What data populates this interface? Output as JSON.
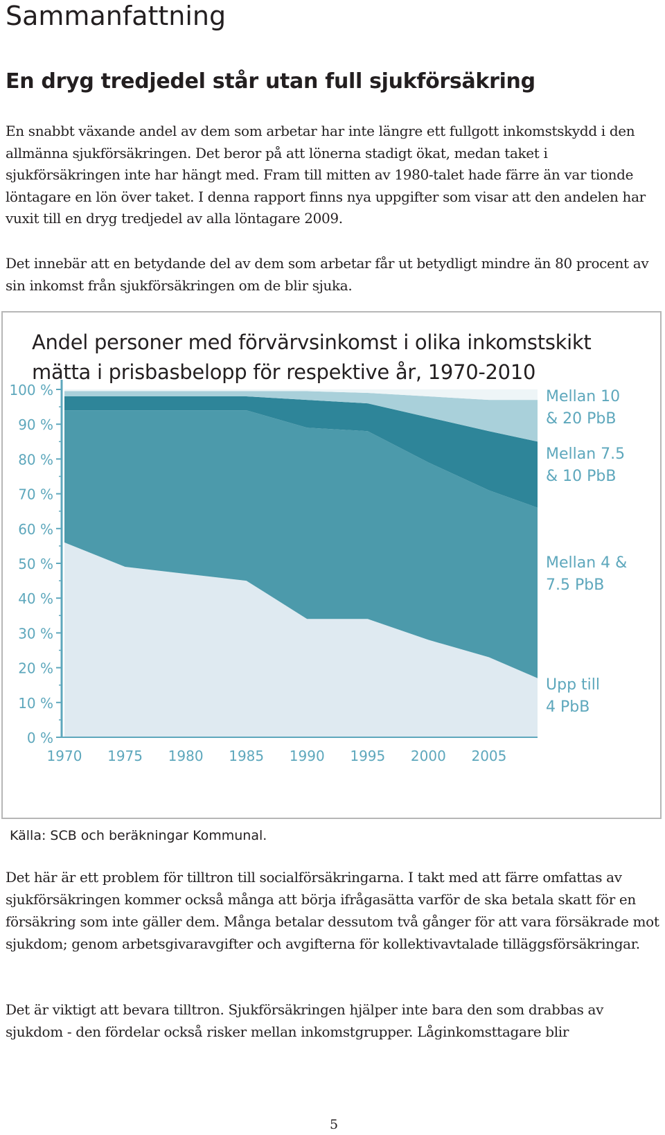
{
  "page": {
    "heading": "Sammanfattning",
    "subheading": "En dryg tredjedel står utan full sjukförsäkring",
    "paragraphs": [
      "En snabbt växande andel av dem som arbetar har inte längre ett fullgott inkomstskydd i den allmänna sjukförsäkringen. Det beror på att lönerna stadigt ökat, medan taket i sjukförsäkringen inte har hängt med. Fram till mitten av 1980-talet hade färre än var tionde löntagare en lön över taket. I denna rapport finns nya uppgifter som visar att den andelen har vuxit till en dryg tredjedel av alla löntagare 2009.",
      "Det innebär att en betydande del av dem som arbetar får ut betydligt mindre än 80 procent av sin inkomst från sjukförsäkringen om de blir sjuka.",
      "Det här är ett problem för tilltron till socialförsäkringarna. I takt med att färre omfattas av sjukförsäkringen kommer också många att börja ifrågasätta varför de ska betala skatt för en försäkring som inte gäller dem. Många betalar dessutom två gånger för att vara försäkrade mot sjukdom; genom arbetsgivaravgifter och avgifterna för kollektivavtalade tilläggsförsäkringar.",
      "Det är viktigt att bevara tilltron. Sjukförsäkringen hjälper inte bara den som drabbas av sjukdom - den fördelar också risker mellan inkomstgrupper. Låginkomsttagare blir"
    ],
    "source": "Källa: SCB och beräkningar Kommunal.",
    "page_number": "5"
  },
  "chart_data": {
    "type": "area",
    "stacked": true,
    "title_lines": [
      "Andel personer med förvärvsinkomst i olika inkomstskikt",
      "mätta i prisbasbelopp för respektive år, 1970-2010"
    ],
    "x": [
      1970,
      1975,
      1980,
      1985,
      1990,
      1995,
      2000,
      2005,
      2009
    ],
    "x_ticks": [
      "1970",
      "1975",
      "1980",
      "1985",
      "1990",
      "1995",
      "2000",
      "2005"
    ],
    "y_ticks": [
      "0 %",
      "10 %",
      "20 %",
      "30 %",
      "40 %",
      "50 %",
      "60 %",
      "70 %",
      "80 %",
      "90 %",
      "100 %"
    ],
    "ylim": [
      0,
      100
    ],
    "xlim": [
      1970,
      2009
    ],
    "series": [
      {
        "name": "Upp till 4 PbB",
        "label_lines": [
          "Upp till",
          "4 PbB"
        ],
        "color": "#dfeaf1",
        "values": [
          56,
          49,
          47,
          45,
          34,
          34,
          28,
          23,
          17
        ]
      },
      {
        "name": "Mellan 4 & 7.5 PbB",
        "label_lines": [
          "Mellan 4 &",
          "7.5 PbB"
        ],
        "color": "#4c9aab",
        "values": [
          38,
          45,
          47,
          49,
          55,
          54,
          51,
          48,
          49
        ]
      },
      {
        "name": "Mellan 7.5 & 10 PbB",
        "label_lines": [
          "Mellan 7.5",
          "&  10 PbB"
        ],
        "color": "#2e8599",
        "values": [
          4,
          4,
          4,
          4,
          8,
          8,
          13,
          17,
          19
        ]
      },
      {
        "name": "Mellan 10 & 20 PbB",
        "label_lines": [
          "Mellan 10",
          "& 20 PbB"
        ],
        "color": "#a9d0da",
        "values": [
          1.5,
          1.5,
          1.5,
          1.5,
          2.5,
          3,
          6,
          9,
          12
        ]
      }
    ]
  }
}
